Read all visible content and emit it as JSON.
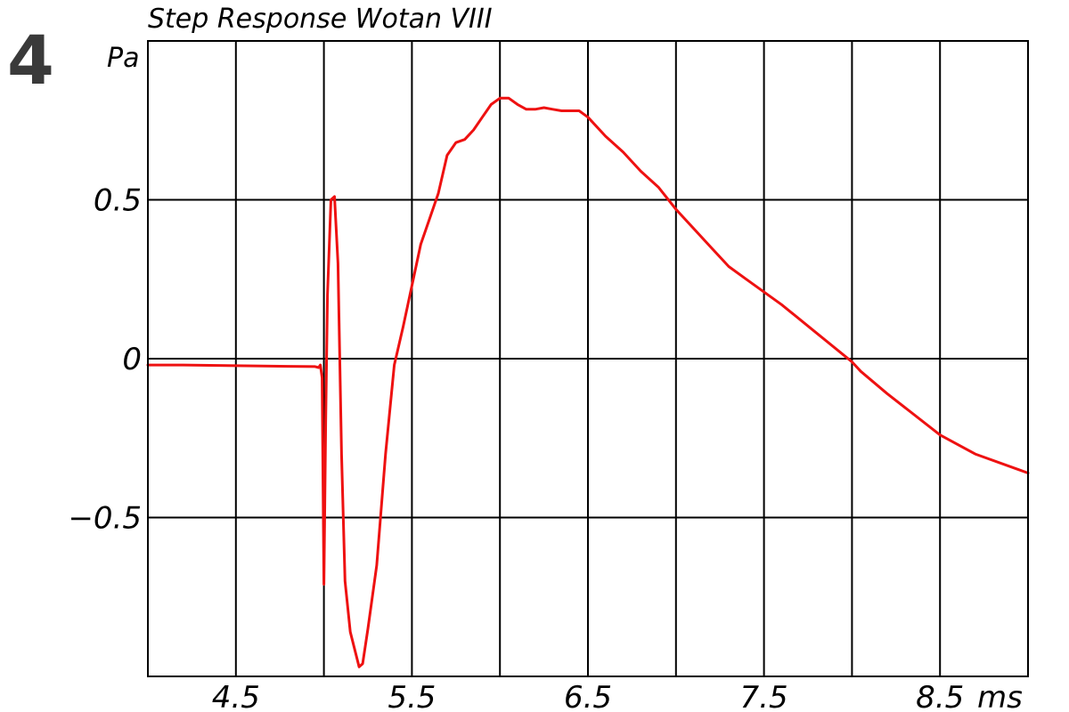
{
  "figure_label": "4",
  "chart_data": {
    "type": "line",
    "title": "Step Response Wotan VIII",
    "ylabel": "Pa",
    "xunit": "ms",
    "xlim": [
      4.0,
      9.0
    ],
    "ylim": [
      -1.0,
      1.0
    ],
    "xticks": [
      4.5,
      5.5,
      6.5,
      7.5,
      8.5
    ],
    "xtick_labels": [
      "4.5",
      "5.5",
      "6.5",
      "7.5",
      "8.5"
    ],
    "yticks": [
      0.5,
      0,
      -0.5
    ],
    "ytick_labels": [
      "0.5",
      "0",
      "−0.5"
    ],
    "grid": true,
    "line_color": "#ee1111",
    "series": [
      {
        "x": [
          4.0,
          4.2,
          4.5,
          4.8,
          4.95,
          4.97,
          4.98,
          4.99,
          5.0,
          5.01,
          5.02,
          5.04,
          5.06,
          5.08,
          5.1,
          5.12,
          5.15,
          5.2,
          5.22,
          5.25,
          5.3,
          5.35,
          5.4,
          5.45,
          5.5,
          5.55,
          5.6,
          5.65,
          5.7,
          5.75,
          5.8,
          5.85,
          5.9,
          5.95,
          6.0,
          6.05,
          6.1,
          6.15,
          6.2,
          6.25,
          6.3,
          6.35,
          6.4,
          6.45,
          6.5,
          6.6,
          6.7,
          6.8,
          6.9,
          7.0,
          7.2,
          7.3,
          7.4,
          7.6,
          7.8,
          8.0,
          8.05,
          8.2,
          8.5,
          8.7,
          9.0
        ],
        "y": [
          -0.02,
          -0.02,
          -0.022,
          -0.024,
          -0.025,
          -0.028,
          -0.02,
          -0.06,
          -0.71,
          -0.2,
          0.2,
          0.5,
          0.51,
          0.3,
          -0.3,
          -0.7,
          -0.86,
          -0.97,
          -0.96,
          -0.85,
          -0.65,
          -0.3,
          -0.02,
          0.1,
          0.23,
          0.36,
          0.44,
          0.52,
          0.64,
          0.68,
          0.69,
          0.72,
          0.76,
          0.8,
          0.82,
          0.82,
          0.8,
          0.785,
          0.785,
          0.79,
          0.785,
          0.78,
          0.78,
          0.78,
          0.76,
          0.7,
          0.65,
          0.59,
          0.54,
          0.47,
          0.35,
          0.29,
          0.25,
          0.17,
          0.08,
          -0.01,
          -0.04,
          -0.11,
          -0.24,
          -0.3,
          -0.36
        ]
      }
    ]
  }
}
